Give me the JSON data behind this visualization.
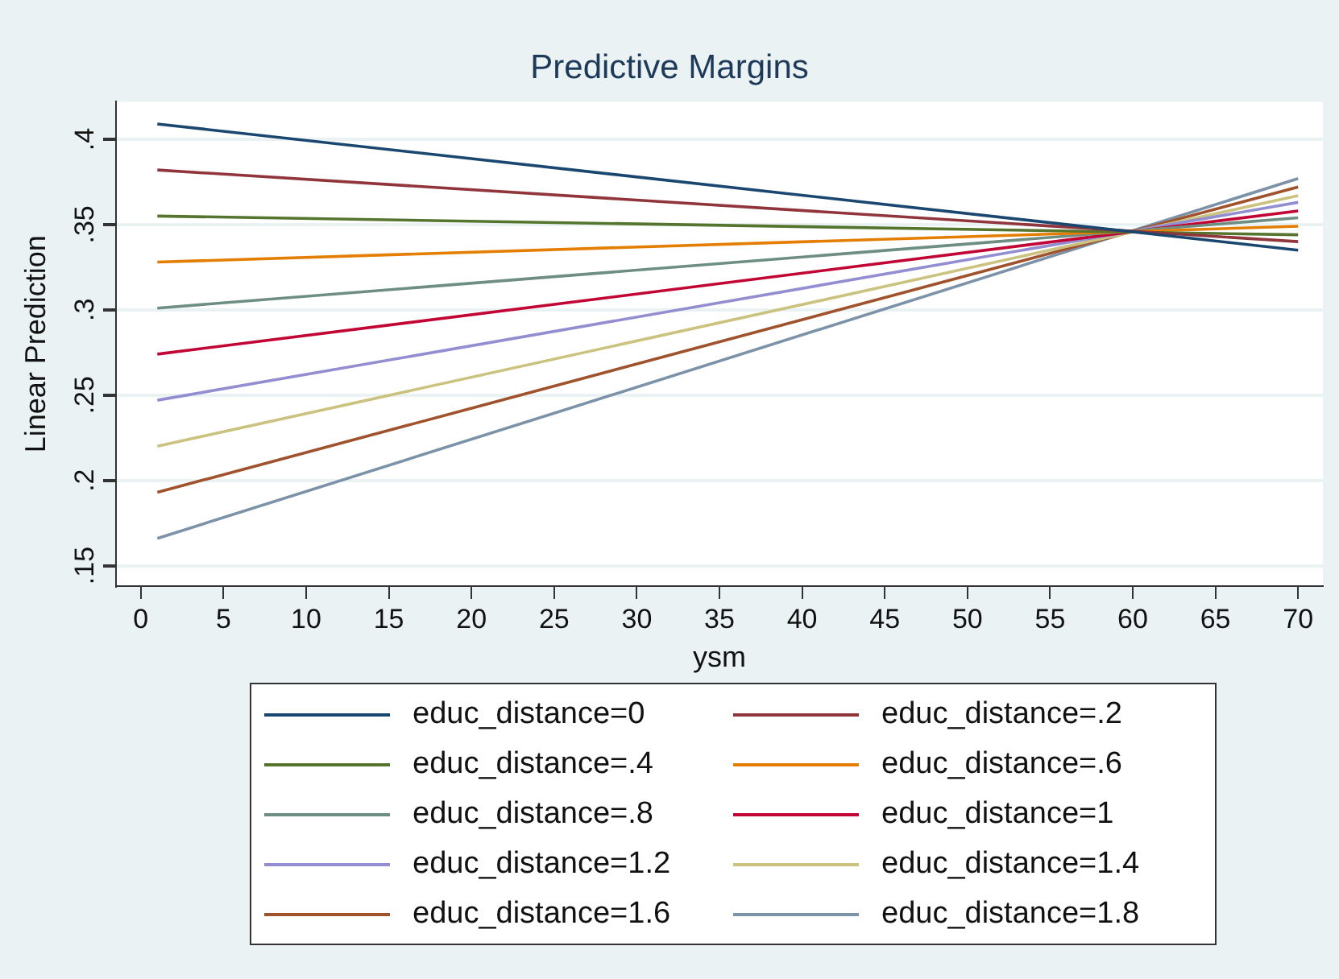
{
  "chart_data": {
    "type": "line",
    "title": "Predictive Margins",
    "xlabel": "ysm",
    "ylabel": "Linear Prediction",
    "x": [
      1,
      70
    ],
    "series": [
      {
        "name": "educ_distance=0",
        "color": "#1a476f",
        "values": [
          0.409,
          0.335
        ]
      },
      {
        "name": "educ_distance=.2",
        "color": "#90353b",
        "values": [
          0.382,
          0.34
        ]
      },
      {
        "name": "educ_distance=.4",
        "color": "#55752f",
        "values": [
          0.355,
          0.344
        ]
      },
      {
        "name": "educ_distance=.6",
        "color": "#e37e00",
        "values": [
          0.328,
          0.349
        ]
      },
      {
        "name": "educ_distance=.8",
        "color": "#6e8e84",
        "values": [
          0.301,
          0.354
        ]
      },
      {
        "name": "educ_distance=1",
        "color": "#c10534",
        "values": [
          0.274,
          0.358
        ]
      },
      {
        "name": "educ_distance=1.2",
        "color": "#938dd2",
        "values": [
          0.247,
          0.363
        ]
      },
      {
        "name": "educ_distance=1.4",
        "color": "#cac27e",
        "values": [
          0.22,
          0.367
        ]
      },
      {
        "name": "educ_distance=1.6",
        "color": "#a0522d",
        "values": [
          0.193,
          0.372
        ]
      },
      {
        "name": "educ_distance=1.8",
        "color": "#7b92a8",
        "values": [
          0.166,
          0.377
        ]
      }
    ],
    "xlim": [
      -1.5,
      71.5
    ],
    "xticks": [
      0,
      5,
      10,
      15,
      20,
      25,
      30,
      35,
      40,
      45,
      50,
      55,
      60,
      65,
      70
    ],
    "ylim": [
      0.138,
      0.422
    ],
    "yticks": [
      {
        "value": 0.15,
        "label": ".15"
      },
      {
        "value": 0.2,
        "label": ".2"
      },
      {
        "value": 0.25,
        "label": ".25"
      },
      {
        "value": 0.3,
        "label": ".3"
      },
      {
        "value": 0.35,
        "label": ".35"
      },
      {
        "value": 0.4,
        "label": ".4"
      }
    ],
    "grid": "y",
    "legend": "bottom",
    "marker": "none",
    "line_style": "solid"
  }
}
